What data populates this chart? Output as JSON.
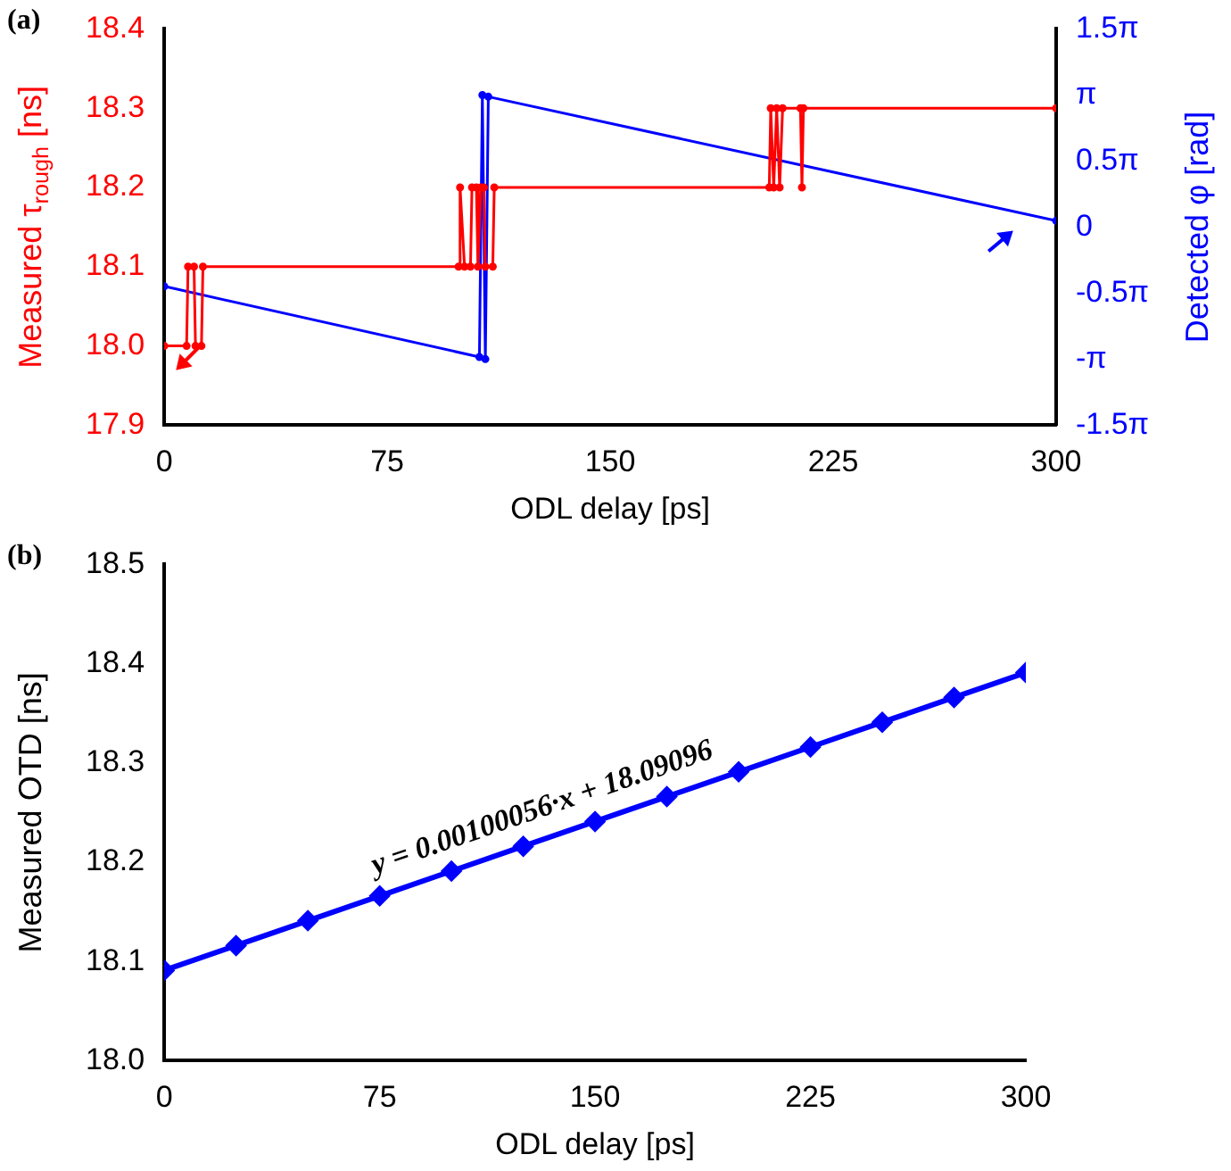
{
  "chart_data": [
    {
      "type": "line",
      "xlabel": "ODL delay [ps]",
      "ylabel": "Measured τ$_{rough}$ [ns]",
      "y2label": "Detected φ [rad]",
      "annotations": [
        "(a)"
      ],
      "xlim": [
        0,
        300
      ],
      "xticks": [
        0,
        75,
        150,
        225,
        300
      ],
      "ylim": [
        17.9,
        18.4
      ],
      "yticks": [
        17.9,
        {
          "value": 18,
          "label": "18.0"
        },
        18.1,
        18.2,
        18.3,
        18.4
      ],
      "y2lim": [
        -4.712,
        4.712
      ],
      "y2ticks": [
        {
          "value": -4.712,
          "label": "-1.5π"
        },
        {
          "value": -3.142,
          "label": "-π"
        },
        {
          "value": -1.571,
          "label": "-0.5π"
        },
        0,
        {
          "value": 1.571,
          "label": "0.5π"
        },
        {
          "value": 3.142,
          "label": "π"
        },
        {
          "value": 4.712,
          "label": "1.5π"
        }
      ],
      "grid": false,
      "legend": false,
      "marker": "circle",
      "series": [
        {
          "color": "#ff0000",
          "axis": "y",
          "x": [
            0,
            7.5,
            8,
            10,
            10.5,
            12.5,
            13,
            99,
            99.5,
            101,
            103,
            103.5,
            105,
            105.5,
            106.5,
            107.5,
            108,
            110.5,
            111,
            203.5,
            204,
            205,
            206,
            207,
            208,
            214,
            214.5,
            215,
            300
          ],
          "values": [
            18,
            18,
            18.1,
            18.1,
            18,
            18,
            18.1,
            18.1,
            18.2,
            18.1,
            18.1,
            18.2,
            18.2,
            18.1,
            18.2,
            18.2,
            18.1,
            18.1,
            18.2,
            18.2,
            18.3,
            18.2,
            18.3,
            18.2,
            18.3,
            18.3,
            18.2,
            18.3,
            18.3
          ]
        },
        {
          "color": "#0000ff",
          "axis": "y2",
          "x": [
            0,
            106,
            107,
            108,
            109,
            300
          ],
          "values": [
            -1.41,
            -3.09,
            3.14,
            -3.14,
            3.1,
            0.15
          ]
        }
      ]
    },
    {
      "type": "line",
      "xlabel": "ODL delay [ps]",
      "ylabel": "Measured OTD [ns]",
      "annotations": [
        "(b)",
        "y = 0.00100056·x + 18.09096"
      ],
      "xlim": [
        0,
        300
      ],
      "xticks": [
        0,
        75,
        150,
        225,
        300
      ],
      "ylim": [
        18.0,
        18.5
      ],
      "yticks": [
        {
          "value": 18,
          "label": "18.0"
        },
        18.1,
        18.2,
        18.3,
        18.4,
        18.5
      ],
      "grid": false,
      "legend": false,
      "marker": "diamond",
      "series": [
        {
          "color": "#0000ff",
          "x": [
            0,
            25,
            50,
            75,
            100,
            125,
            150,
            175,
            200,
            225,
            250,
            275,
            300
          ],
          "values": [
            18.091,
            18.116,
            18.141,
            18.166,
            18.191,
            18.216,
            18.241,
            18.266,
            18.291,
            18.316,
            18.341,
            18.366,
            18.391
          ]
        }
      ]
    }
  ]
}
